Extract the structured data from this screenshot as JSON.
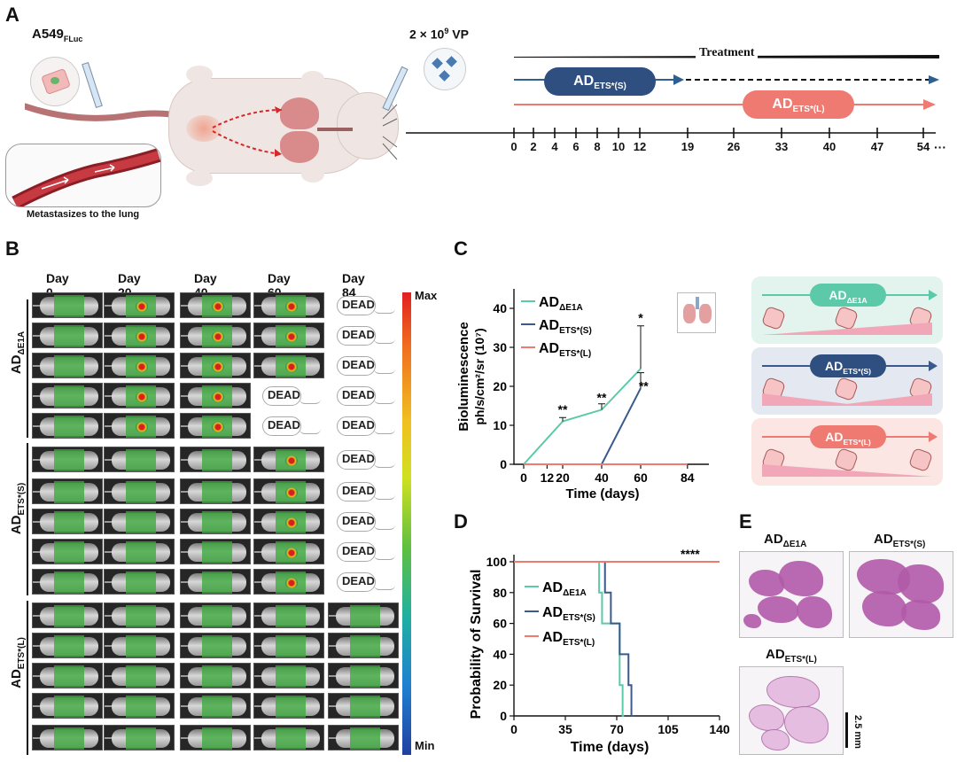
{
  "panels": {
    "a": "A",
    "b": "B",
    "c": "C",
    "d": "D",
    "e": "E"
  },
  "panel_a": {
    "cell_line": "A549",
    "cell_line_sub": "FLuc",
    "dose_main": "2 × 10",
    "dose_exp": "9",
    "dose_unit": " VP",
    "metastasis_label": "Metastasizes to the lung",
    "treatment_label": "Treatment",
    "pill_s": "AD",
    "pill_s_sub": "ETS*(S)",
    "pill_l": "AD",
    "pill_l_sub": "ETS*(L)",
    "timeline_ticks": [
      "0",
      "2",
      "4",
      "6",
      "8",
      "10",
      "12",
      "19",
      "26",
      "33",
      "40",
      "47",
      "54"
    ],
    "timeline_ellipsis": "···",
    "colors": {
      "blue": "#2f5f8f",
      "salmon": "#ee7a72",
      "black": "#111111"
    }
  },
  "panel_b": {
    "col_headers": [
      "Day 0",
      "Day 20",
      "Day 40",
      "Day 60",
      "Day 84"
    ],
    "groups": [
      {
        "name": "AD",
        "sub": "ΔE1A"
      },
      {
        "name": "AD",
        "sub": "ETS*(S)"
      },
      {
        "name": "AD",
        "sub": "ETS*(L)"
      }
    ],
    "dead_label": "DEAD",
    "scale_max": "Max",
    "scale_min": "Min"
  },
  "panel_c": {
    "chart_data": {
      "type": "line",
      "xlabel": "Time (days)",
      "ylabel": "Bioluminescence",
      "ylabel2": "ph/s/cm²/sr (10⁷)",
      "x_ticks": [
        "0",
        "12",
        "20",
        "40",
        "60",
        "84"
      ],
      "y_ticks": [
        "0",
        "10",
        "20",
        "30",
        "40"
      ],
      "ylim": [
        0,
        45
      ],
      "xlim": [
        -5,
        95
      ],
      "series": [
        {
          "name": "AD",
          "sub": "ΔE1A",
          "color": "#5cc9a9",
          "x": [
            0,
            20,
            40,
            60
          ],
          "y": [
            0,
            11,
            14,
            24.5
          ],
          "err": [
            0,
            1.0,
            1.5,
            11
          ]
        },
        {
          "name": "AD",
          "sub": "ETS*(S)",
          "color": "#3a5a8c",
          "x": [
            0,
            40,
            60
          ],
          "y": [
            0,
            0,
            19.5
          ],
          "err": [
            0,
            0,
            4
          ]
        },
        {
          "name": "AD",
          "sub": "ETS*(L)",
          "color": "#ee7a72",
          "x": [
            0,
            20,
            40,
            60,
            84
          ],
          "y": [
            0,
            0,
            0,
            0,
            0
          ],
          "err": [
            0,
            0,
            0,
            0,
            0
          ]
        }
      ],
      "annotations": [
        {
          "text": "**",
          "x": 20,
          "y": 13
        },
        {
          "text": "**",
          "x": 40,
          "y": 16
        },
        {
          "text": "*",
          "x": 60,
          "y": 36.5
        },
        {
          "text": "**",
          "x": 61.5,
          "y": 19
        }
      ]
    },
    "schematics": [
      {
        "name": "AD",
        "sub": "ΔE1A",
        "bg": "#e3f3ee",
        "line": "#5cc9a9",
        "pill": "#5cc9a9",
        "wedge": "#f2a7b8",
        "direction": "up"
      },
      {
        "name": "AD",
        "sub": "ETS*(S)",
        "bg": "#e4e8f1",
        "line": "#3a5a8c",
        "pill": "#2f4f80",
        "wedge": "#f2a7b8",
        "direction": "down-up"
      },
      {
        "name": "AD",
        "sub": "ETS*(L)",
        "bg": "#fbe6e4",
        "line": "#ee7a72",
        "pill": "#ee7a72",
        "wedge": "#f2a7b8",
        "direction": "down"
      }
    ]
  },
  "panel_d": {
    "chart_data": {
      "type": "line",
      "xlabel": "Time (days)",
      "ylabel": "Probability of Survival",
      "x_ticks": [
        "0",
        "35",
        "70",
        "105",
        "140"
      ],
      "y_ticks": [
        "0",
        "20",
        "40",
        "60",
        "80",
        "100"
      ],
      "xlim": [
        0,
        140
      ],
      "ylim": [
        0,
        100
      ],
      "significance": "****",
      "series": [
        {
          "name": "AD",
          "sub": "ΔE1A",
          "color": "#5cc9a9",
          "steps": [
            [
              0,
              100
            ],
            [
              58,
              100
            ],
            [
              58,
              80
            ],
            [
              60,
              80
            ],
            [
              60,
              60
            ],
            [
              72,
              60
            ],
            [
              72,
              20
            ],
            [
              74,
              20
            ],
            [
              74,
              0
            ],
            [
              75,
              0
            ]
          ]
        },
        {
          "name": "AD",
          "sub": "ETS*(S)",
          "color": "#3a5a8c",
          "steps": [
            [
              0,
              100
            ],
            [
              62,
              100
            ],
            [
              62,
              80
            ],
            [
              66,
              80
            ],
            [
              66,
              60
            ],
            [
              72,
              60
            ],
            [
              72,
              40
            ],
            [
              78,
              40
            ],
            [
              78,
              20
            ],
            [
              80,
              20
            ],
            [
              80,
              0
            ],
            [
              82,
              0
            ]
          ]
        },
        {
          "name": "AD",
          "sub": "ETS*(L)",
          "color": "#ee7a72",
          "steps": [
            [
              0,
              100
            ],
            [
              140,
              100
            ]
          ]
        }
      ]
    }
  },
  "panel_e": {
    "labels": [
      {
        "name": "AD",
        "sub": "ΔE1A"
      },
      {
        "name": "AD",
        "sub": "ETS*(S)"
      },
      {
        "name": "AD",
        "sub": "ETS*(L)"
      }
    ],
    "scale_bar": "2.5 mm"
  }
}
